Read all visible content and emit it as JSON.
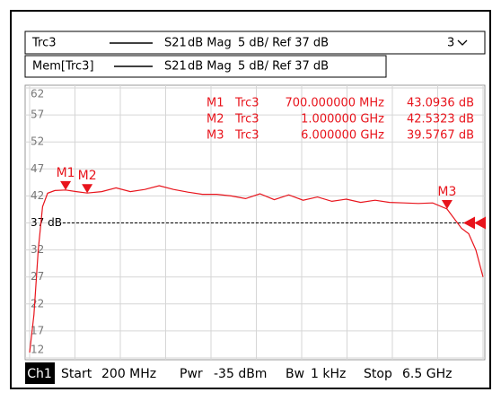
{
  "chart_data": {
    "type": "line",
    "x": [
      200,
      260,
      320,
      380,
      450,
      550,
      700,
      850,
      1000,
      1200,
      1400,
      1600,
      1800,
      2000,
      2200,
      2400,
      2600,
      2800,
      3000,
      3200,
      3400,
      3600,
      3800,
      4000,
      4200,
      4400,
      4600,
      4800,
      5000,
      5200,
      5400,
      5600,
      5800,
      6000,
      6200,
      6300,
      6400,
      6500
    ],
    "series": [
      {
        "name": "Trc3",
        "color": "#e8141c",
        "values": [
          13,
          20,
          32,
          40,
          42.5,
          43,
          43.0936,
          42.8,
          42.5323,
          42.8,
          43.5,
          42.8,
          43.2,
          43.9,
          43.2,
          42.7,
          42.3,
          42.3,
          42,
          41.5,
          42.4,
          41.3,
          42.2,
          41.2,
          41.8,
          41,
          41.4,
          40.8,
          41.2,
          40.8,
          40.7,
          40.6,
          40.7,
          39.5767,
          36,
          35,
          32,
          27
        ]
      }
    ],
    "xlim": [
      200,
      6500
    ],
    "xticks": [
      200,
      830,
      1460,
      2090,
      2720,
      3350,
      3980,
      4610,
      5240,
      5870,
      6500
    ],
    "ylim": [
      12,
      62
    ],
    "yticks": [
      62,
      57,
      52,
      47,
      42,
      {
        "value": 37,
        "label": "37 dB"
      },
      32,
      27,
      22,
      17,
      12
    ],
    "grid": true,
    "reference_level": 37,
    "markers": [
      {
        "label": "M1",
        "trace": "Trc3",
        "x": 700,
        "x_label": "700.000000 MHz",
        "value": 43.0936,
        "value_label": "43.0936 dB"
      },
      {
        "label": "M2",
        "trace": "Trc3",
        "x": 1000,
        "x_label": "1.000000 GHz",
        "value": 42.5323,
        "value_label": "42.5323 dB"
      },
      {
        "label": "M3",
        "trace": "Trc3",
        "x": 6000,
        "x_label": "6.000000 GHz",
        "value": 39.5767,
        "value_label": "39.5767 dB"
      }
    ]
  },
  "trace_list": [
    {
      "name": "Trc3",
      "param": "S21",
      "format": "dB Mag",
      "scale": "5 dB/ Ref 37 dB"
    },
    {
      "name": "Mem[Trc3]",
      "param": "S21",
      "format": "dB Mag",
      "scale": "5 dB/ Ref 37 dB"
    }
  ],
  "diagram_count": "3",
  "channel_bar": {
    "channel": "Ch1",
    "items": [
      "Start",
      "200 MHz",
      "Pwr",
      "-35 dBm",
      "Bw",
      "1 kHz",
      "Stop",
      "6.5 GHz"
    ]
  }
}
